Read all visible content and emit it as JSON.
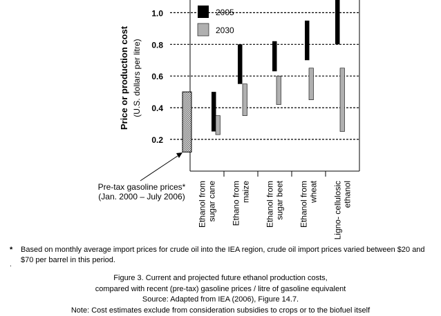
{
  "chart_data": {
    "type": "floating-bar",
    "ylabel": "Price or production cost",
    "ylabel_sub": "(U.S. dollars per litre)",
    "yticks": [
      "0.2",
      "0.4",
      "0.6",
      "0.8",
      "1.0"
    ],
    "ytick_values": [
      0.2,
      0.4,
      0.6,
      0.8,
      1.0
    ],
    "ylim": [
      0,
      1.1
    ],
    "legend": [
      {
        "name": "2005",
        "color": "#000000"
      },
      {
        "name": "2030",
        "color": "#b0b0b0"
      }
    ],
    "reference": {
      "label_line1": "Pre-tax gasoline prices*",
      "label_line2": "(Jan. 2000 – July 2006)",
      "low": 0.12,
      "high": 0.5
    },
    "categories": [
      {
        "line1": "Ethanol from",
        "line2": "sugar cane"
      },
      {
        "line1": "Ethano from",
        "line2": "maize"
      },
      {
        "line1": "Ethanol from",
        "line2": "sugar  beet"
      },
      {
        "line1": "Ethanol from",
        "line2": "wheat"
      },
      {
        "line1": "Ligno- cellulosic",
        "line2": "ethanol"
      }
    ],
    "series": [
      {
        "name": "2005",
        "ranges": [
          [
            0.25,
            0.5
          ],
          [
            0.55,
            0.8
          ],
          [
            0.63,
            0.82
          ],
          [
            0.7,
            0.95
          ],
          [
            0.8,
            1.1
          ]
        ]
      },
      {
        "name": "2030",
        "ranges": [
          [
            0.23,
            0.35
          ],
          [
            0.35,
            0.55
          ],
          [
            0.42,
            0.6
          ],
          [
            0.45,
            0.65
          ],
          [
            0.25,
            0.65
          ]
        ]
      }
    ]
  },
  "footnote": {
    "marker": "*",
    "text": "Based on monthly average import prices for crude oil into the IEA region, crude oil import prices varied between $20 and $70 per barrel in this period."
  },
  "caption": {
    "line1": "Figure 3. Current and projected future ethanol production costs,",
    "line2": "compared with recent (pre-tax) gasoline prices / litre of gasoline equivalent",
    "line3": "Source: Adapted from IEA (2006), Figure 14.7.",
    "line4": "Note: Cost estimates exclude from consideration subsidies to crops or to the biofuel itself"
  },
  "stray_dot": "."
}
